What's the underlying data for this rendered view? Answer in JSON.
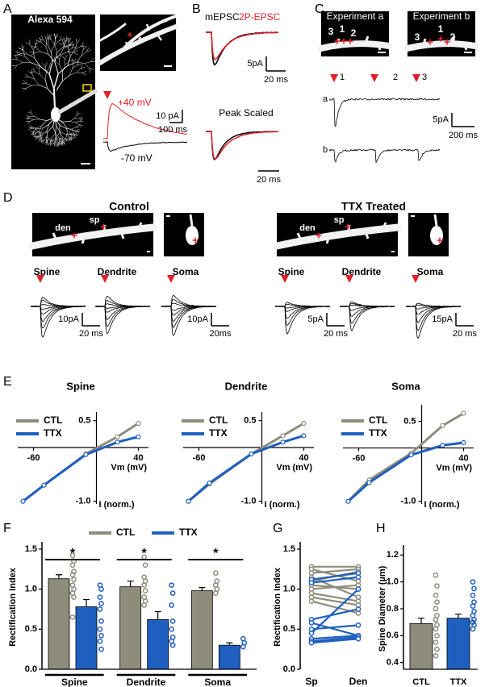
{
  "figure": {
    "panel_labels": [
      "A",
      "B",
      "C",
      "D",
      "E",
      "F",
      "G",
      "H"
    ],
    "A": {
      "stain": "Alexa 594",
      "trace_labels": [
        "+40 mV",
        "-70 mV"
      ],
      "scale_y": "10 pA",
      "scale_x": "100 ms"
    },
    "B": {
      "legend": [
        "mEPSC",
        "2P-EPSC"
      ],
      "scale_y": "5pA",
      "scale_x": "20 ms",
      "subtitle": "Peak Scaled",
      "scale_x2": "20 ms"
    },
    "C": {
      "experiments": [
        "Experiment a",
        "Experiment b"
      ],
      "site_numbers": [
        "1",
        "2",
        "3"
      ],
      "trace_rows": [
        "a",
        "b"
      ],
      "scale_y": "5pA",
      "scale_x": "200 ms"
    },
    "D": {
      "groups": [
        {
          "title": "Control",
          "markers": [
            "den",
            "sp"
          ],
          "sites": [
            "Spine",
            "Dendrite",
            "Soma"
          ],
          "scales": [
            {
              "y": "10pA",
              "x": "20 ms"
            },
            {
              "y": "10pA",
              "x": "20ms"
            }
          ]
        },
        {
          "title": "TTX Treated",
          "markers": [
            "den",
            "sp"
          ],
          "sites": [
            "Spine",
            "Dendrite",
            "Soma"
          ],
          "scales": [
            {
              "y": "5pA",
              "x": "20 ms"
            },
            {
              "y": "15pA",
              "x": "20 ms"
            }
          ]
        }
      ]
    }
  },
  "chart_data": [
    {
      "type": "line",
      "title": "Spine",
      "xlabel": "Vm (mV)",
      "ylabel": "I (norm.)",
      "x": [
        -70,
        -50,
        -10,
        20,
        40
      ],
      "xlim": [
        -75,
        45
      ],
      "ylim": [
        -1.05,
        0.6
      ],
      "xticks": [
        -60,
        40
      ],
      "yticks": [
        0.5,
        {
          "value": -1,
          "label": "-1.0"
        }
      ],
      "series": [
        {
          "name": "CTL",
          "color": "#8e8d7c",
          "values": [
            -1.0,
            -0.7,
            -0.12,
            0.2,
            0.45
          ]
        },
        {
          "name": "TTX",
          "color": "#1f5fbf",
          "values": [
            -1.0,
            -0.7,
            -0.13,
            0.1,
            0.2
          ]
        }
      ]
    },
    {
      "type": "line",
      "title": "Dendrite",
      "xlabel": "Vm (mV)",
      "ylabel": "I (norm.)",
      "x": [
        -70,
        -50,
        -10,
        20,
        40
      ],
      "xlim": [
        -75,
        45
      ],
      "ylim": [
        -1.05,
        0.6
      ],
      "xticks": [
        -60,
        40
      ],
      "yticks": [
        0.5,
        {
          "value": -1,
          "label": "-1.0"
        }
      ],
      "series": [
        {
          "name": "CTL",
          "color": "#8e8d7c",
          "values": [
            -1.0,
            -0.68,
            -0.12,
            0.22,
            0.45
          ]
        },
        {
          "name": "TTX",
          "color": "#1f5fbf",
          "values": [
            -1.0,
            -0.66,
            -0.12,
            0.1,
            0.22
          ]
        }
      ]
    },
    {
      "type": "line",
      "title": "Soma",
      "xlabel": "Vm (mV)",
      "ylabel": "I (norm.)",
      "x": [
        -70,
        -50,
        -10,
        20,
        40
      ],
      "xlim": [
        -75,
        45
      ],
      "ylim": [
        -1.05,
        0.75
      ],
      "xticks": [
        -60,
        40
      ],
      "yticks": [
        0.5,
        {
          "value": -1,
          "label": "-1.0"
        }
      ],
      "series": [
        {
          "name": "CTL",
          "color": "#8e8d7c",
          "values": [
            -1.0,
            -0.6,
            -0.1,
            0.42,
            0.65
          ]
        },
        {
          "name": "TTX",
          "color": "#1f5fbf",
          "values": [
            -1.0,
            -0.65,
            -0.13,
            0.05,
            0.1
          ]
        }
      ]
    },
    {
      "type": "bar",
      "ylabel": "Rectification Index",
      "categories": [
        "Spine",
        "Dendrite",
        "Soma"
      ],
      "ylim": [
        0,
        1.55
      ],
      "yticks": [
        {
          "value": 0,
          "label": "0.0"
        },
        0.5,
        {
          "value": 1,
          "label": "1.0"
        },
        1.5
      ],
      "annotations": [
        "*",
        "*",
        "*"
      ],
      "series": [
        {
          "name": "CTL",
          "color": "#8e8d7c",
          "values": [
            1.13,
            1.03,
            0.98
          ],
          "errors": [
            0.05,
            0.07,
            0.04
          ],
          "points": [
            [
              1.42,
              1.35,
              1.3,
              1.22,
              1.18,
              1.12,
              1.05,
              1.0,
              0.95,
              0.9,
              0.65
            ],
            [
              1.4,
              1.3,
              1.15,
              1.1,
              1.05,
              0.98,
              0.9,
              0.85,
              0.8
            ],
            [
              1.2,
              1.1,
              1.05,
              1.0,
              0.95
            ]
          ]
        },
        {
          "name": "TTX",
          "color": "#1f5fbf",
          "values": [
            0.78,
            0.62,
            0.3
          ],
          "errors": [
            0.09,
            0.1,
            0.03
          ],
          "points": [
            [
              1.05,
              1.0,
              0.9,
              0.82,
              0.75,
              0.6,
              0.5,
              0.42,
              0.35,
              0.25
            ],
            [
              1.05,
              0.95,
              0.8,
              0.6,
              0.5,
              0.4,
              0.35,
              0.3
            ],
            [
              0.38,
              0.33,
              0.28
            ]
          ]
        }
      ]
    },
    {
      "type": "paired",
      "ylabel": "Rectification Index",
      "categories": [
        "Sp",
        "Den"
      ],
      "ylim": [
        0,
        1.55
      ],
      "yticks": [
        {
          "value": 0,
          "label": "0.0"
        },
        0.5,
        {
          "value": 1,
          "label": "1.0"
        },
        1.5
      ],
      "series": [
        {
          "color": "#8e8d7c",
          "values": [
            [
              1.28,
              1.28
            ],
            [
              1.25,
              1.1
            ],
            [
              1.2,
              1.25
            ],
            [
              1.15,
              0.9
            ],
            [
              1.1,
              1.22
            ],
            [
              1.05,
              1.0
            ],
            [
              1.0,
              1.05
            ],
            [
              0.95,
              0.85
            ],
            [
              0.9,
              0.8
            ],
            [
              0.85,
              0.7
            ]
          ]
        },
        {
          "color": "#1f5fbf",
          "values": [
            [
              1.12,
              1.2
            ],
            [
              1.08,
              1.15
            ],
            [
              0.62,
              0.75
            ],
            [
              0.58,
              0.42
            ],
            [
              0.5,
              0.55
            ],
            [
              0.45,
              1.0
            ],
            [
              0.38,
              0.42
            ],
            [
              0.35,
              0.4
            ],
            [
              0.33,
              0.38
            ]
          ]
        }
      ]
    },
    {
      "type": "bar",
      "ylabel": "Spine Diameter (µm)",
      "categories": [
        "CTL",
        "TTX"
      ],
      "values": [
        0.69,
        0.73
      ],
      "errors": [
        0.04,
        0.03
      ],
      "colors": [
        "#8e8d7c",
        "#1f5fbf"
      ],
      "ylim": [
        0.35,
        1.25
      ],
      "yticks": [
        0.4,
        0.6,
        0.8,
        {
          "value": 1,
          "label": "1.0"
        },
        1.2
      ],
      "points": [
        [
          1.05,
          0.97,
          0.9,
          0.85,
          0.8,
          0.75,
          0.72,
          0.68,
          0.65,
          0.6,
          0.55,
          0.5,
          0.45
        ],
        [
          1.0,
          0.95,
          0.9,
          0.85,
          0.82,
          0.78,
          0.75,
          0.72,
          0.7,
          0.68,
          0.65
        ]
      ]
    }
  ]
}
